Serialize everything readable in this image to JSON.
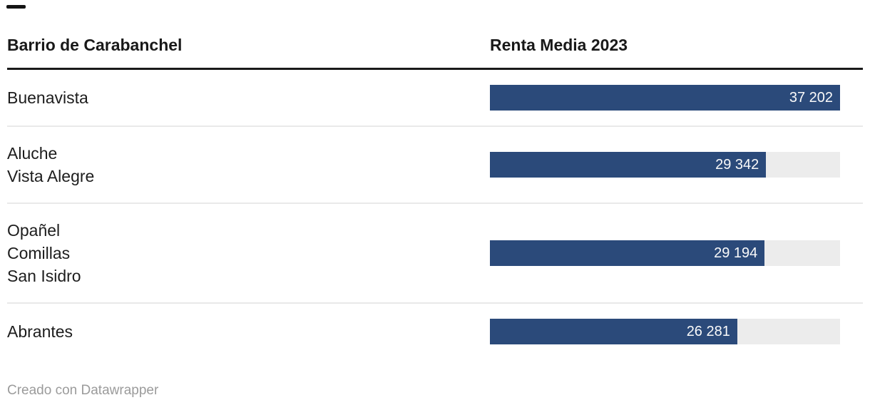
{
  "header": {
    "label_column": "Barrio de Carabanchel",
    "value_column": "Renta Media 2023"
  },
  "chart_data": {
    "type": "bar",
    "title": "Barrio de Carabanchel — Renta Media 2023",
    "categories": [
      "Buenavista",
      "Aluche / Vista Alegre",
      "Opañel / Comillas / San Isidro",
      "Abrantes"
    ],
    "values": [
      37202,
      29342,
      29194,
      26281
    ],
    "value_labels": [
      "37 202",
      "29 342",
      "29 194",
      "26 281"
    ],
    "xlabel": "",
    "ylabel": "Renta Media 2023",
    "xlim": [
      0,
      37202
    ],
    "grid": false,
    "legend": false,
    "orientation": "horizontal"
  },
  "rows": [
    {
      "lines": [
        "Buenavista"
      ],
      "value": 37202,
      "value_label": "37 202"
    },
    {
      "lines": [
        "Aluche",
        "Vista Alegre"
      ],
      "value": 29342,
      "value_label": "29 342"
    },
    {
      "lines": [
        "Opañel",
        "Comillas",
        "San Isidro"
      ],
      "value": 29194,
      "value_label": "29 194"
    },
    {
      "lines": [
        "Abrantes"
      ],
      "value": 26281,
      "value_label": "26 281"
    }
  ],
  "footer": {
    "credit": "Creado con Datawrapper"
  },
  "colors": {
    "bar": "#2b4a7a",
    "track": "#ececec",
    "header_rule": "#1a1a1a",
    "separator": "#e9e9e9",
    "text": "#1d1d1d",
    "muted_text": "#9b9b9b",
    "value_text": "#fafafa"
  }
}
